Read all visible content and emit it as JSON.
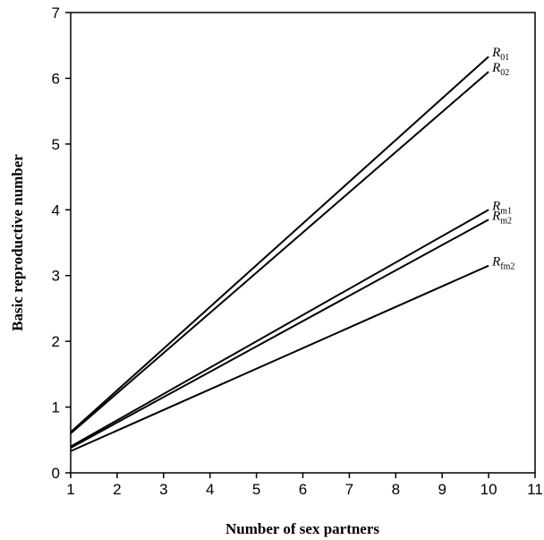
{
  "chart_data": {
    "type": "line",
    "title": "",
    "xlabel": "Number of sex partners",
    "ylabel": "Basic reproductive number",
    "xlim": [
      1,
      11
    ],
    "ylim": [
      0,
      7
    ],
    "xticks": [
      1,
      2,
      3,
      4,
      5,
      6,
      7,
      8,
      9,
      10,
      11
    ],
    "yticks": [
      0,
      1,
      2,
      3,
      4,
      5,
      6,
      7
    ],
    "grid": false,
    "legend": "none",
    "series": [
      {
        "symbol": "R",
        "sub": "01",
        "x": [
          1,
          10
        ],
        "y": [
          0.62,
          6.33
        ]
      },
      {
        "symbol": "R",
        "sub": "02",
        "x": [
          1,
          10
        ],
        "y": [
          0.6,
          6.1
        ]
      },
      {
        "symbol": "R",
        "sub": "m1",
        "x": [
          1,
          10
        ],
        "y": [
          0.4,
          4.0
        ]
      },
      {
        "symbol": "R",
        "sub": "m2",
        "x": [
          1,
          10
        ],
        "y": [
          0.38,
          3.85
        ]
      },
      {
        "symbol": "R",
        "sub": "fm2",
        "x": [
          1,
          10
        ],
        "y": [
          0.33,
          3.15
        ]
      }
    ]
  }
}
